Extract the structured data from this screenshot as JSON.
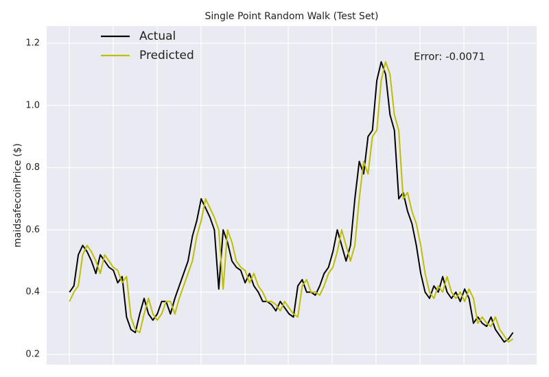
{
  "chart_data": {
    "type": "line",
    "title": "Single Point Random Walk (Test Set)",
    "y_label": "maidsafecoinPrice ($)",
    "annotation": "Error: -0.0071",
    "legend": "upper left",
    "grid": true,
    "xlim": [
      -26,
      532
    ],
    "ylim": [
      0.167,
      1.255
    ],
    "yticks": [
      0.2,
      0.4,
      0.6,
      0.8,
      {
        "value": 1,
        "label": "1.0"
      },
      1.2
    ],
    "x": [
      0,
      5,
      10,
      15,
      20,
      25,
      30,
      35,
      40,
      45,
      50,
      55,
      60,
      65,
      70,
      75,
      80,
      85,
      90,
      95,
      100,
      105,
      110,
      115,
      120,
      125,
      130,
      135,
      140,
      145,
      150,
      155,
      160,
      165,
      170,
      175,
      180,
      185,
      190,
      195,
      200,
      205,
      210,
      215,
      220,
      225,
      230,
      235,
      240,
      245,
      250,
      255,
      260,
      265,
      270,
      275,
      280,
      285,
      290,
      295,
      300,
      305,
      310,
      315,
      320,
      325,
      330,
      335,
      340,
      345,
      350,
      355,
      360,
      365,
      370,
      375,
      380,
      385,
      390,
      395,
      400,
      405,
      410,
      415,
      420,
      425,
      430,
      435,
      440,
      445,
      450,
      455,
      460,
      465,
      470,
      475,
      480,
      485,
      490,
      495,
      500,
      505
    ],
    "series": [
      {
        "name": "Actual",
        "color": "#000000",
        "values": [
          0.4,
          0.42,
          0.52,
          0.55,
          0.53,
          0.5,
          0.46,
          0.52,
          0.5,
          0.48,
          0.47,
          0.43,
          0.45,
          0.32,
          0.28,
          0.27,
          0.33,
          0.38,
          0.33,
          0.31,
          0.33,
          0.37,
          0.37,
          0.33,
          0.38,
          0.42,
          0.46,
          0.5,
          0.58,
          0.63,
          0.7,
          0.67,
          0.64,
          0.6,
          0.41,
          0.6,
          0.56,
          0.5,
          0.48,
          0.47,
          0.43,
          0.46,
          0.42,
          0.4,
          0.37,
          0.37,
          0.36,
          0.34,
          0.37,
          0.35,
          0.33,
          0.32,
          0.42,
          0.44,
          0.4,
          0.4,
          0.39,
          0.42,
          0.46,
          0.48,
          0.53,
          0.6,
          0.55,
          0.5,
          0.55,
          0.7,
          0.82,
          0.78,
          0.9,
          0.92,
          1.08,
          1.14,
          1.1,
          0.97,
          0.92,
          0.7,
          0.72,
          0.66,
          0.62,
          0.55,
          0.46,
          0.4,
          0.38,
          0.42,
          0.4,
          0.45,
          0.4,
          0.38,
          0.4,
          0.37,
          0.41,
          0.38,
          0.3,
          0.32,
          0.3,
          0.29,
          0.32,
          0.28,
          0.26,
          0.24,
          0.25,
          0.27
        ]
      },
      {
        "name": "Predicted",
        "color": "#bfbf00",
        "values": [
          0.37,
          0.4,
          0.42,
          0.52,
          0.55,
          0.53,
          0.5,
          0.46,
          0.52,
          0.5,
          0.48,
          0.47,
          0.43,
          0.45,
          0.32,
          0.28,
          0.27,
          0.33,
          0.38,
          0.33,
          0.31,
          0.33,
          0.37,
          0.37,
          0.33,
          0.38,
          0.42,
          0.46,
          0.5,
          0.58,
          0.63,
          0.7,
          0.67,
          0.64,
          0.6,
          0.41,
          0.6,
          0.56,
          0.5,
          0.48,
          0.47,
          0.43,
          0.46,
          0.42,
          0.4,
          0.37,
          0.37,
          0.36,
          0.34,
          0.37,
          0.35,
          0.33,
          0.32,
          0.42,
          0.44,
          0.4,
          0.4,
          0.39,
          0.42,
          0.46,
          0.48,
          0.53,
          0.6,
          0.55,
          0.5,
          0.55,
          0.7,
          0.82,
          0.78,
          0.9,
          0.92,
          1.08,
          1.14,
          1.1,
          0.97,
          0.92,
          0.7,
          0.72,
          0.66,
          0.62,
          0.55,
          0.46,
          0.4,
          0.38,
          0.42,
          0.4,
          0.45,
          0.4,
          0.38,
          0.4,
          0.37,
          0.41,
          0.38,
          0.3,
          0.32,
          0.3,
          0.29,
          0.32,
          0.28,
          0.26,
          0.24,
          0.25
        ]
      }
    ]
  }
}
